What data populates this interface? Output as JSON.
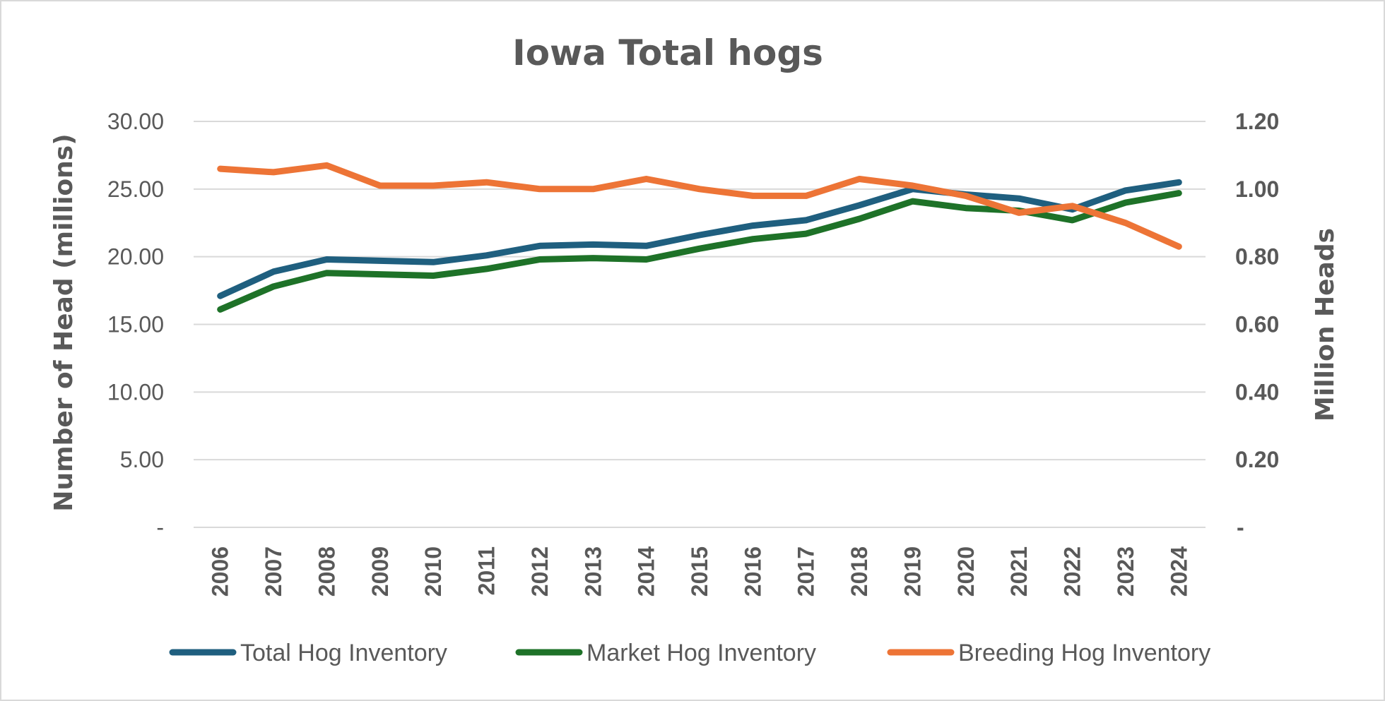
{
  "chart_data": {
    "type": "line",
    "title": "Iowa Total hogs",
    "ylabel": "Number of Head (millions)",
    "y2label": "Million Heads",
    "xlabel": "",
    "categories": [
      "2006",
      "2007",
      "2008",
      "2009",
      "2010",
      "2011",
      "2012",
      "2013",
      "2014",
      "2015",
      "2016",
      "2017",
      "2018",
      "2019",
      "2020",
      "2021",
      "2022",
      "2023",
      "2024"
    ],
    "ylim": [
      0,
      30
    ],
    "y2lim": [
      0,
      1.2
    ],
    "y_ticks": [
      "-",
      "5.00",
      "10.00",
      "15.00",
      "20.00",
      "25.00",
      "30.00"
    ],
    "y2_ticks": [
      "-",
      "0.20",
      "0.40",
      "0.60",
      "0.80",
      "1.00",
      "1.20"
    ],
    "grid": true,
    "legend_position": "bottom",
    "series": [
      {
        "name": "Total Hog Inventory",
        "axis": "left",
        "color": "#1f5f7f",
        "values": [
          17.1,
          18.9,
          19.8,
          19.7,
          19.6,
          20.1,
          20.8,
          20.9,
          20.8,
          21.6,
          22.3,
          22.7,
          23.8,
          25.0,
          24.6,
          24.3,
          23.5,
          24.9,
          25.5
        ]
      },
      {
        "name": "Market Hog Inventory",
        "axis": "left",
        "color": "#1e7228",
        "values": [
          16.1,
          17.8,
          18.8,
          18.7,
          18.6,
          19.1,
          19.8,
          19.9,
          19.8,
          20.6,
          21.3,
          21.7,
          22.8,
          24.1,
          23.6,
          23.4,
          22.7,
          24.0,
          24.7
        ]
      },
      {
        "name": "Breeding Hog Inventory",
        "axis": "right",
        "color": "#ed7436",
        "values": [
          1.06,
          1.05,
          1.07,
          1.01,
          1.01,
          1.02,
          1.0,
          1.0,
          1.03,
          1.0,
          0.98,
          0.98,
          1.03,
          1.01,
          0.98,
          0.93,
          0.95,
          0.9,
          0.83
        ]
      }
    ]
  }
}
